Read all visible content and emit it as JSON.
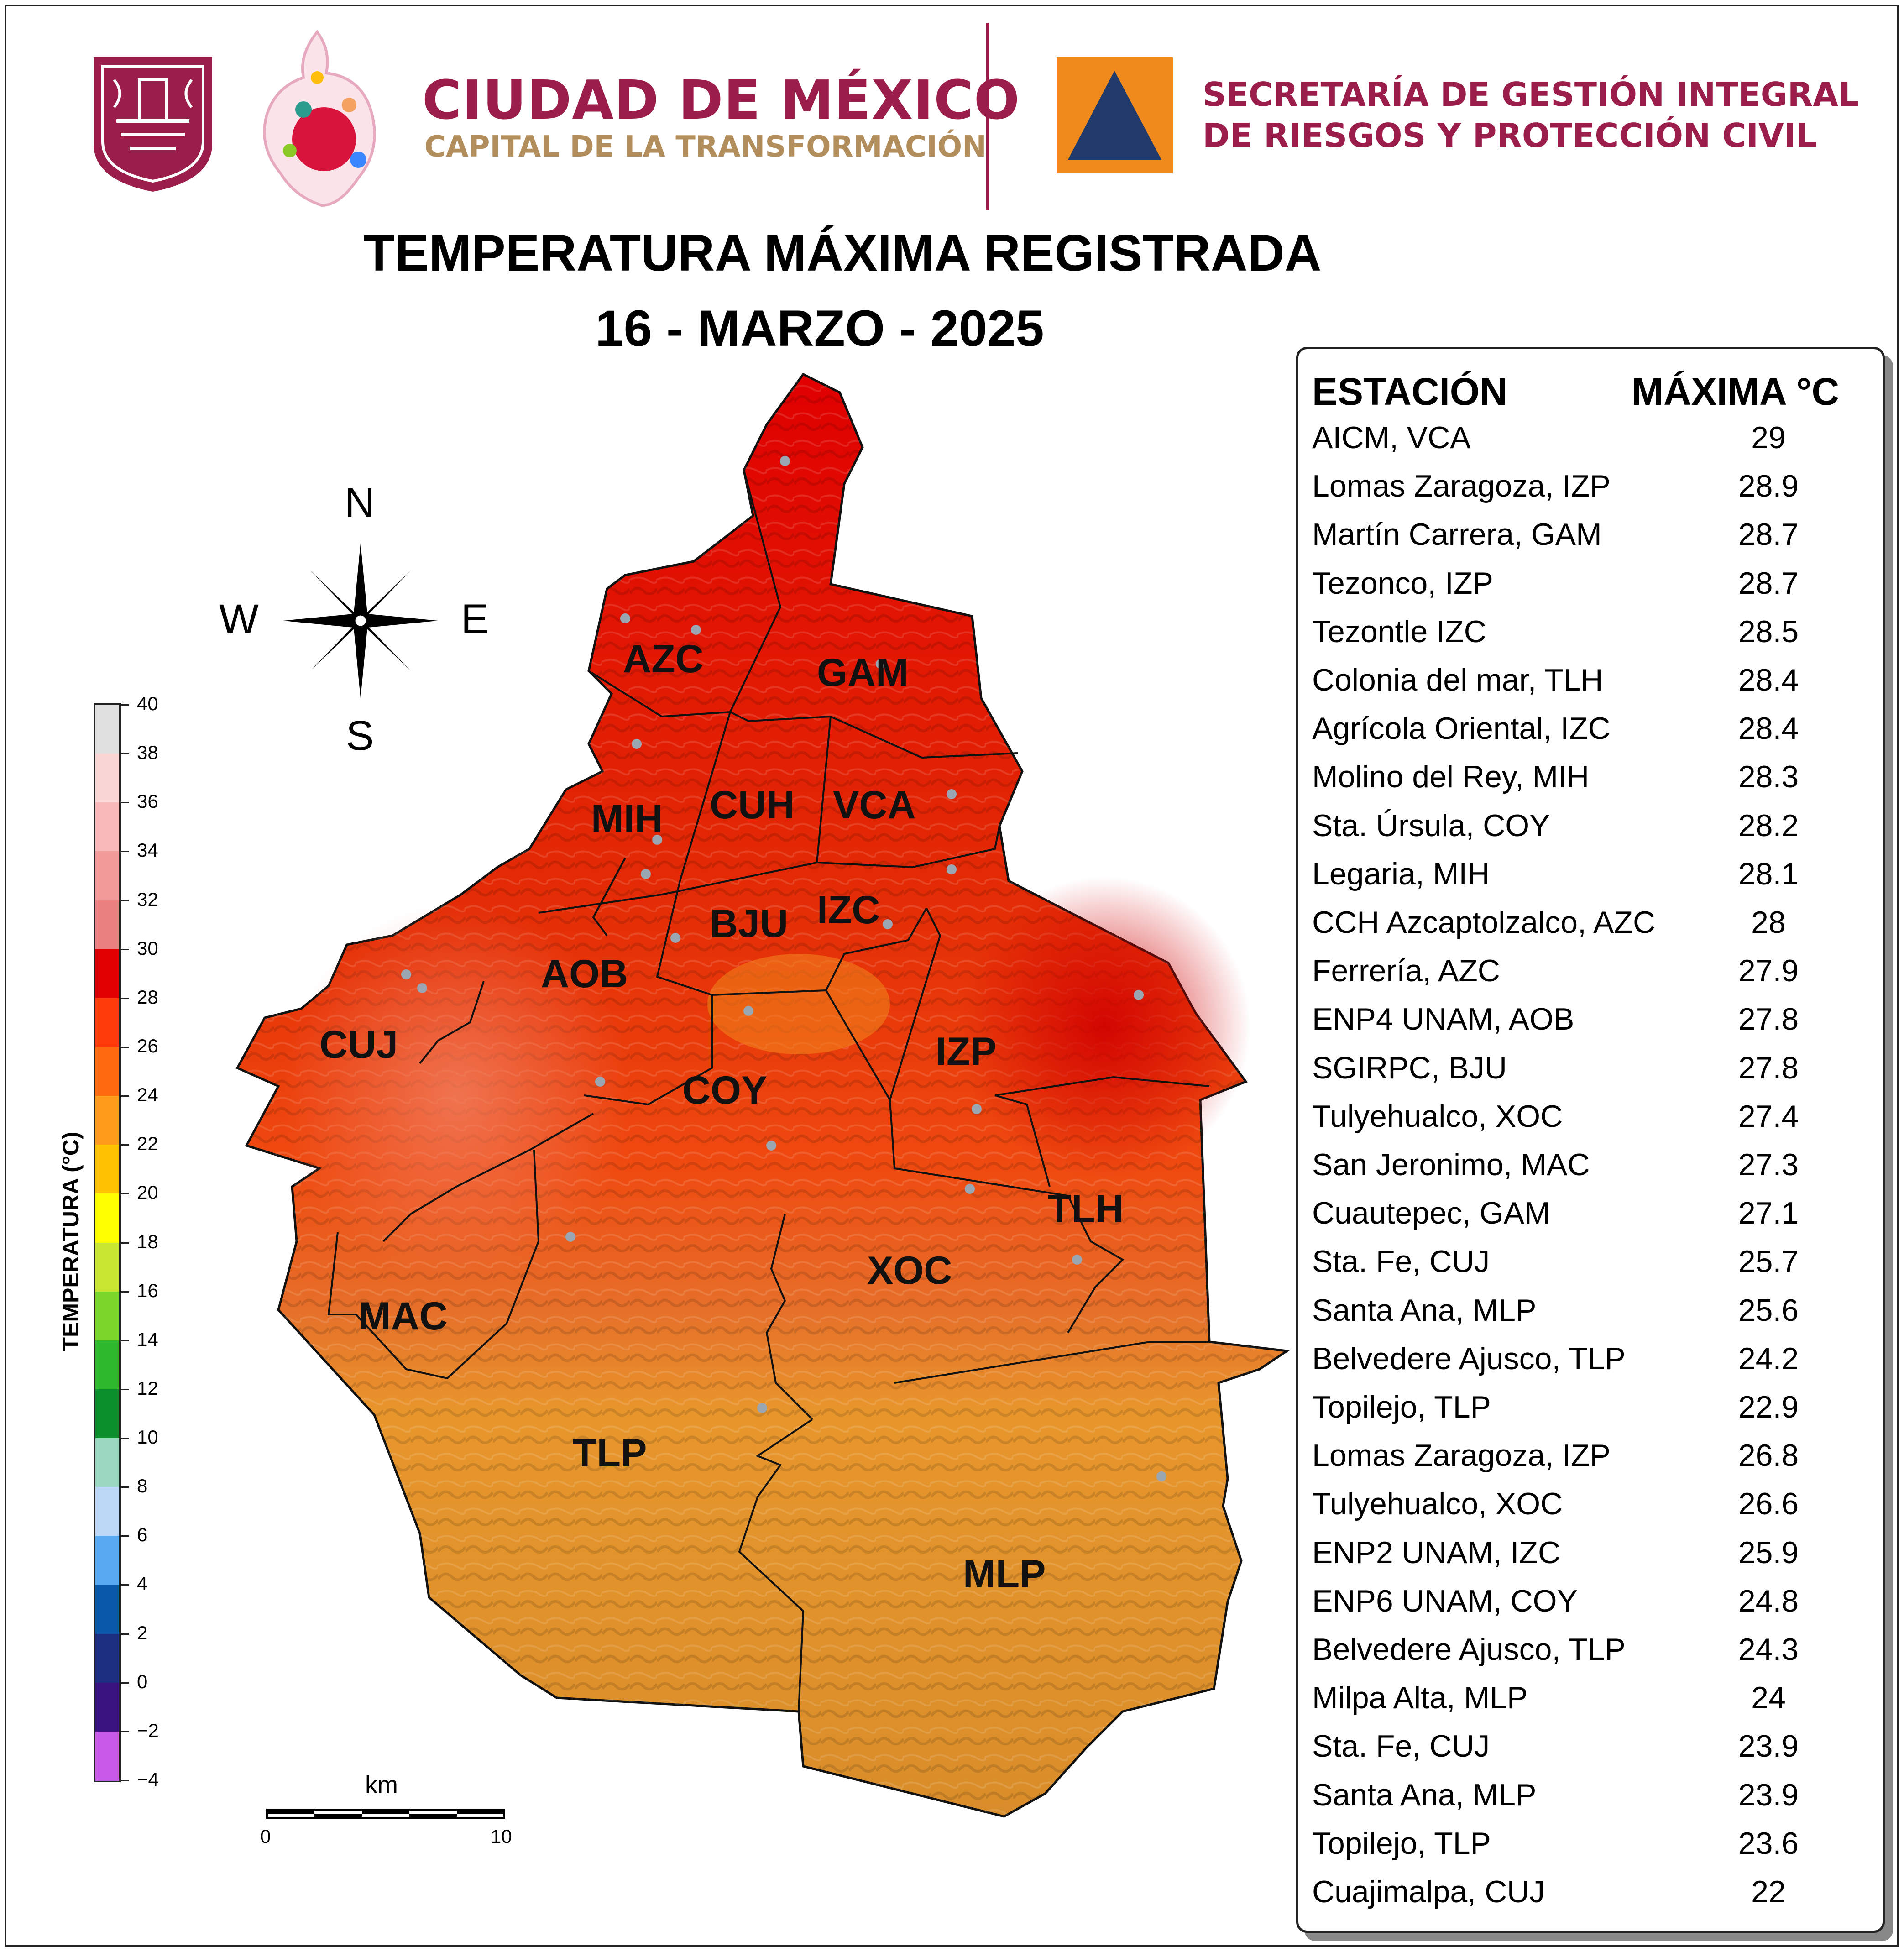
{
  "header": {
    "cdmx_title": "CIUDAD DE MÉXICO",
    "cdmx_subtitle": "CAPITAL DE LA TRANSFORMACIÓN",
    "agency_line1": "SECRETARÍA DE GESTIÓN INTEGRAL",
    "agency_line2": "DE RIESGOS Y PROTECCIÓN CIVIL",
    "colors": {
      "brand": "#9b1d4a",
      "gold": "#b38e5d",
      "pc_orange": "#f18a1d",
      "pc_blue": "#1f3a6b"
    }
  },
  "title": {
    "line1": "TEMPERATURA MÁXIMA REGISTRADA",
    "line2": "16 - MARZO - 2025"
  },
  "compass": {
    "n": "N",
    "s": "S",
    "e": "E",
    "w": "W"
  },
  "scale_bar": {
    "unit": "km",
    "start": "0",
    "end": "10"
  },
  "colorbar": {
    "label": "TEMPERATURA (°C)",
    "ticks": [
      "40",
      "38",
      "36",
      "34",
      "32",
      "30",
      "28",
      "26",
      "24",
      "22",
      "20",
      "18",
      "16",
      "14",
      "12",
      "10",
      "8",
      "6",
      "4",
      "2",
      "0",
      "−2",
      "−4"
    ],
    "colors": [
      "#e0e0e0",
      "#fbd6d6",
      "#f9b9b9",
      "#f29a9a",
      "#ea8080",
      "#f06a6a",
      "#e00000",
      "#ff3a0a",
      "#ff6a10",
      "#ff9a1a",
      "#ffc200",
      "#ffff00",
      "#c8e632",
      "#7ad62a",
      "#2eb82e",
      "#0a8f2c",
      "#9ad9c0",
      "#bcd7f5",
      "#58aaf0",
      "#1a6fc0",
      "#0a4a9c",
      "#1d2f80",
      "#3a1280",
      "#6a0a90",
      "#c85ae8"
    ]
  },
  "table": {
    "header_station": "ESTACIÓN",
    "header_max": "MÁXIMA °C",
    "rows": [
      {
        "station": "AICM, VCA",
        "max": "29"
      },
      {
        "station": "Lomas Zaragoza, IZP",
        "max": "28.9"
      },
      {
        "station": "Martín Carrera, GAM",
        "max": "28.7"
      },
      {
        "station": "Tezonco, IZP",
        "max": "28.7"
      },
      {
        "station": "Tezontle IZC",
        "max": "28.5"
      },
      {
        "station": "Colonia del mar, TLH",
        "max": "28.4"
      },
      {
        "station": "Agrícola Oriental, IZC",
        "max": "28.4"
      },
      {
        "station": "Molino del Rey, MIH",
        "max": "28.3"
      },
      {
        "station": "Sta. Úrsula, COY",
        "max": "28.2"
      },
      {
        "station": "Legaria, MIH",
        "max": "28.1"
      },
      {
        "station": "CCH Azcaptolzalco, AZC",
        "max": "28"
      },
      {
        "station": "Ferrería, AZC",
        "max": "27.9"
      },
      {
        "station": "ENP4 UNAM,  AOB",
        "max": "27.8"
      },
      {
        "station": "SGIRPC, BJU",
        "max": "27.8"
      },
      {
        "station": "Tulyehualco, XOC",
        "max": "27.4"
      },
      {
        "station": "San Jeronimo, MAC",
        "max": "27.3"
      },
      {
        "station": "Cuautepec, GAM",
        "max": "27.1"
      },
      {
        "station": "Sta. Fe, CUJ",
        "max": "25.7"
      },
      {
        "station": "Santa Ana, MLP",
        "max": "25.6"
      },
      {
        "station": "Belvedere Ajusco, TLP",
        "max": "24.2"
      },
      {
        "station": "Topilejo, TLP",
        "max": "22.9"
      },
      {
        "station": "Lomas Zaragoza, IZP",
        "max": "26.8"
      },
      {
        "station": "Tulyehualco, XOC",
        "max": "26.6"
      },
      {
        "station": "ENP2 UNAM,  IZC",
        "max": "25.9"
      },
      {
        "station": "ENP6 UNAM,  COY",
        "max": "24.8"
      },
      {
        "station": "Belvedere Ajusco, TLP",
        "max": "24.3"
      },
      {
        "station": "Milpa Alta, MLP",
        "max": "24"
      },
      {
        "station": "Sta. Fe, CUJ",
        "max": "23.9"
      },
      {
        "station": "Santa Ana, MLP",
        "max": "23.9"
      },
      {
        "station": "Topilejo, TLP",
        "max": "23.6"
      },
      {
        "station": "Cuajimalpa, CUJ",
        "max": "22"
      }
    ]
  },
  "alcaldias": [
    "AZC",
    "GAM",
    "MIH",
    "CUH",
    "VCA",
    "BJU",
    "IZC",
    "AOB",
    "CUJ",
    "COY",
    "IZP",
    "TLH",
    "XOC",
    "MAC",
    "TLP",
    "MLP"
  ]
}
